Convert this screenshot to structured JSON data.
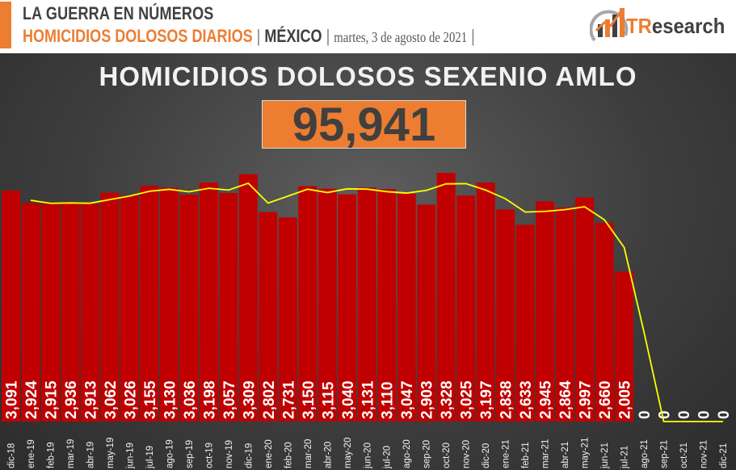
{
  "header": {
    "line1": "LA GUERRA EN NÚMEROS",
    "line2_topic": "HOMICIDIOS DOLOSOS DIARIOS",
    "line2_sep": "|",
    "line2_place": "MÉXICO",
    "line2_date": "martes, 3 de agosto de 2021",
    "line2_sep_end": "|",
    "brand_tr": "TR",
    "brand_rest": "esearch"
  },
  "colors": {
    "accent": "#ed7d31",
    "bar": "#c00000",
    "line": "#ffff00",
    "panel": "#404040"
  },
  "chart_data": {
    "type": "bar",
    "title": "HOMICIDIOS DOLOSOS SEXENIO AMLO",
    "total_label": "95,941",
    "categories": [
      "dic-18",
      "ene-19",
      "feb-19",
      "mar-19",
      "abr-19",
      "may-19",
      "jun-19",
      "jul-19",
      "ago-19",
      "sep-19",
      "oct-19",
      "nov-19",
      "dic-19",
      "ene-20",
      "feb-20",
      "mar-20",
      "abr-20",
      "may-20",
      "jun-20",
      "jul-20",
      "ago-20",
      "sep-20",
      "oct-20",
      "nov-20",
      "dic-20",
      "ene-21",
      "feb-21",
      "mar-21",
      "abr-21",
      "may-21",
      "jun-21",
      "jul-21",
      "ago-21",
      "sep-21",
      "oct-21",
      "nov-21",
      "dic-21"
    ],
    "series": [
      {
        "type": "bar",
        "values": [
          3091,
          2924,
          2915,
          2936,
          2913,
          3062,
          3026,
          3155,
          3130,
          3036,
          3198,
          3057,
          3309,
          2802,
          2731,
          3150,
          3115,
          3040,
          3131,
          3110,
          3047,
          2903,
          3328,
          3025,
          3197,
          2838,
          2633,
          2945,
          2864,
          2997,
          2660,
          2005,
          0,
          0,
          0,
          0,
          0
        ],
        "value_labels": [
          "3,091",
          "2,924",
          "2,915",
          "2,936",
          "2,913",
          "3,062",
          "3,026",
          "3,155",
          "3,130",
          "3,036",
          "3,198",
          "3,057",
          "3,309",
          "2,802",
          "2,731",
          "3,150",
          "3,115",
          "3,040",
          "3,131",
          "3,110",
          "3,047",
          "2,903",
          "3,328",
          "3,025",
          "3,197",
          "2,838",
          "2,633",
          "2,945",
          "2,864",
          "2,997",
          "2,660",
          "2,005",
          "0",
          "0",
          "0",
          "0",
          "0"
        ]
      },
      {
        "type": "line",
        "note_values_estimated": true,
        "values": [
          null,
          2960,
          2920,
          2925,
          2921,
          2970,
          3017,
          3081,
          3107,
          3074,
          3121,
          3097,
          3188,
          2923,
          3016,
          3109,
          3064,
          3114,
          3110,
          3076,
          3057,
          3093,
          3180,
          3183,
          3097,
          2981,
          2803,
          2812,
          2835,
          2874,
          2700,
          2330,
          1200,
          0,
          0,
          0,
          0
        ]
      }
    ],
    "ylim": [
      0,
      3700
    ],
    "grid": false,
    "legend": "none"
  }
}
